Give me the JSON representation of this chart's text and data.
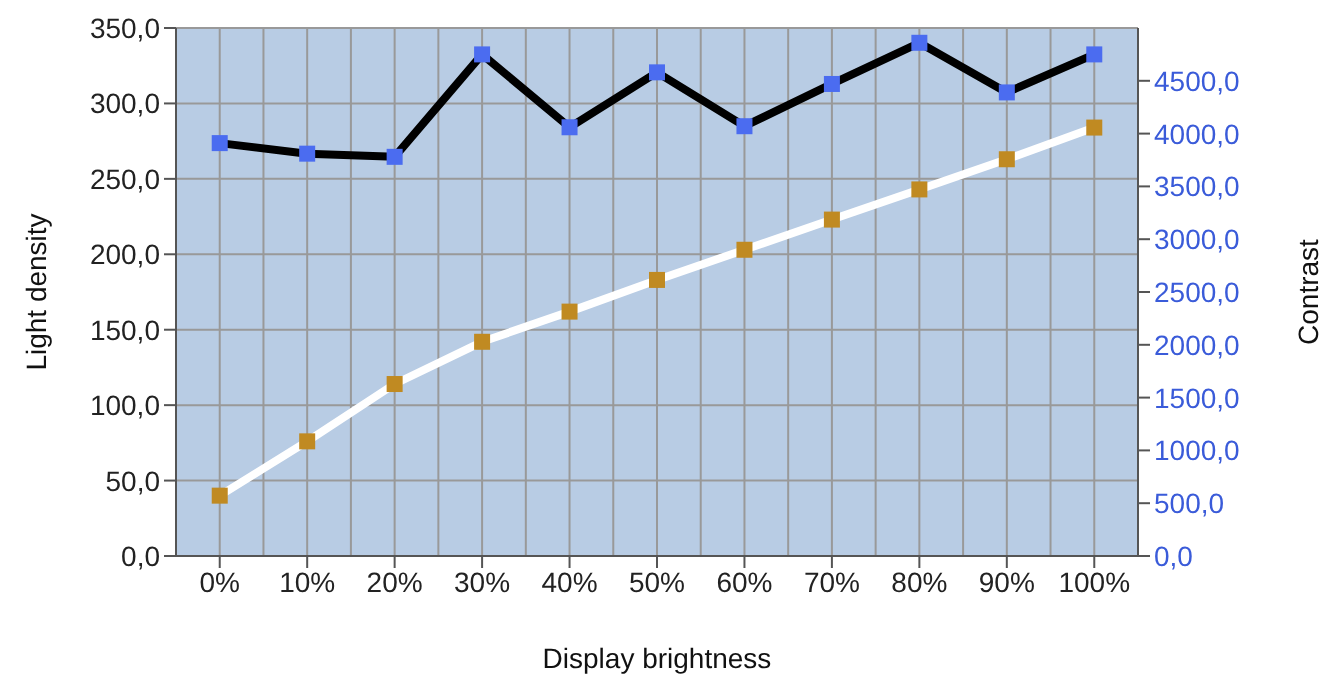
{
  "chart_data": {
    "type": "line",
    "xlabel": "Display brightness",
    "ylabel": "Light density",
    "y2label": "Contrast",
    "categories": [
      "0%",
      "10%",
      "20%",
      "30%",
      "40%",
      "50%",
      "60%",
      "70%",
      "80%",
      "90%",
      "100%"
    ],
    "series": [
      {
        "color": "#000000",
        "colors": [
          "#4b6cf0",
          "#4b6cf0",
          "#4b6cf0",
          "#4b6cf0",
          "#4b6cf0",
          "#4b6cf0",
          "#4b6cf0",
          "#4b6cf0",
          "#4b6cf0",
          "#4b6cf0",
          "#4b6cf0"
        ],
        "axis": "y2",
        "values": [
          3910,
          3810,
          3780,
          4750,
          4060,
          4580,
          4070,
          4470,
          4860,
          4390,
          4750
        ]
      },
      {
        "color": "#ffffff",
        "colors": [
          "#c08a22",
          "#c08a22",
          "#c08a22",
          "#c08a22",
          "#c08a22",
          "#c08a22",
          "#c08a22",
          "#c08a22",
          "#c08a22",
          "#c08a22",
          "#c08a22"
        ],
        "values": [
          40,
          76,
          114,
          142,
          162,
          183,
          203,
          223,
          243,
          263,
          284
        ]
      }
    ],
    "ylim": [
      0,
      350
    ],
    "yticks": [
      {
        "value": 0,
        "label": "0,0"
      },
      {
        "value": 50,
        "label": "50,0"
      },
      {
        "value": 100,
        "label": "100,0"
      },
      {
        "value": 150,
        "label": "150,0"
      },
      {
        "value": 200,
        "label": "200,0"
      },
      {
        "value": 250,
        "label": "250,0"
      },
      {
        "value": 300,
        "label": "300,0"
      },
      {
        "value": 350,
        "label": "350,0"
      }
    ],
    "y2lim": [
      0,
      5000
    ],
    "y2ticks": [
      {
        "value": 0,
        "label": "0,0"
      },
      {
        "value": 500,
        "label": "500,0"
      },
      {
        "value": 1000,
        "label": "1000,0"
      },
      {
        "value": 1500,
        "label": "1500,0"
      },
      {
        "value": 2000,
        "label": "2000,0"
      },
      {
        "value": 2500,
        "label": "2500,0"
      },
      {
        "value": 3000,
        "label": "3000,0"
      },
      {
        "value": 3500,
        "label": "3500,0"
      },
      {
        "value": 4000,
        "label": "4000,0"
      },
      {
        "value": 4500,
        "label": "4500,0"
      }
    ],
    "grid": true,
    "legend": false,
    "marker": "square",
    "line_style": "solid"
  }
}
